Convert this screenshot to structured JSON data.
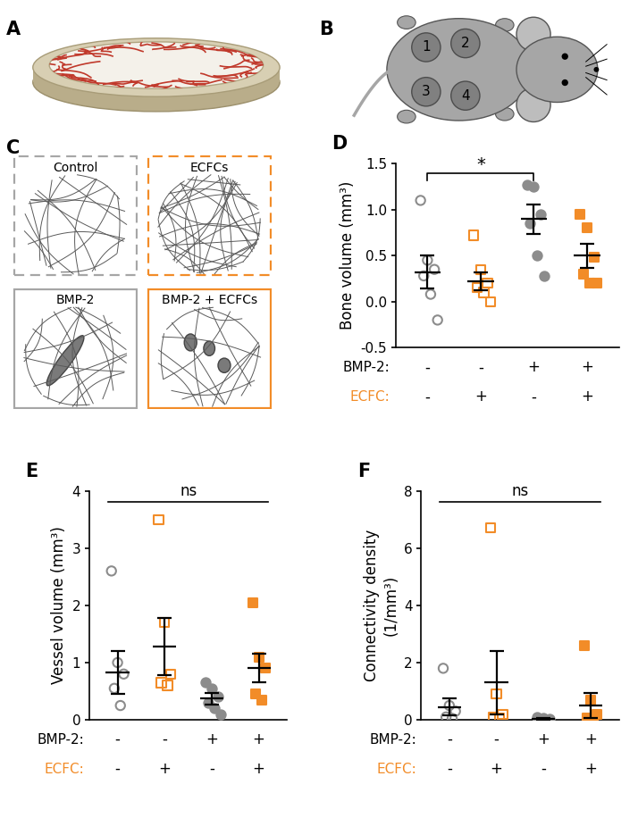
{
  "diagram": {
    "A": {
      "label": "A"
    },
    "B": {
      "label": "B",
      "sites": [
        "1",
        "2",
        "3",
        "4"
      ]
    },
    "C": {
      "label": "C",
      "boxes": [
        {
          "title": "Control",
          "color": "#a6a6a6",
          "line_style": "dashed"
        },
        {
          "title": "ECFCs",
          "color": "#f28c28",
          "line_style": "dashed"
        },
        {
          "title": "BMP-2",
          "color": "#a6a6a6",
          "line_style": "solid"
        },
        {
          "title": "BMP-2 + ECFCs",
          "color": "#f28c28",
          "line_style": "solid"
        }
      ]
    }
  },
  "chart_data": [
    {
      "type": "scatter",
      "title": "D",
      "y_label": "Bone volume (mm³)",
      "categories": [
        null,
        null,
        null,
        null
      ],
      "ylim": [
        -0.5,
        1.5
      ],
      "yticks": [
        {
          "value": -0.5,
          "label": "-0.5"
        },
        {
          "value": 0,
          "label": "0.0"
        },
        {
          "value": 0.5,
          "label": "0.5"
        },
        {
          "value": 1,
          "label": "1.0"
        },
        {
          "value": 1.5,
          "label": "1.5"
        }
      ],
      "groups": [
        {
          "color": "#8c8c8c",
          "marker": "open-circle",
          "values": [
            1.1,
            0.45,
            0.35,
            0.28,
            0.08,
            -0.2
          ],
          "mean": 0.32,
          "sem": 0.18
        },
        {
          "color": "#f28c28",
          "marker": "open-square",
          "values": [
            0.72,
            0.35,
            0.2,
            0.15,
            0.1,
            0.0
          ],
          "mean": 0.22,
          "sem": 0.1
        },
        {
          "color": "#8c8c8c",
          "marker": "circle",
          "values": [
            1.27,
            1.25,
            0.95,
            0.85,
            0.5,
            0.28
          ],
          "mean": 0.9,
          "sem": 0.16
        },
        {
          "color": "#f28c28",
          "marker": "square",
          "values": [
            0.95,
            0.8,
            0.48,
            0.3,
            0.2,
            0.2
          ],
          "mean": 0.5,
          "sem": 0.13
        }
      ],
      "conditions": [
        {
          "label": "BMP-2:",
          "color": "#000000",
          "values": [
            "-",
            "-",
            "+",
            "+"
          ]
        },
        {
          "label": "ECFC:",
          "color": "#f28c28",
          "values": [
            "-",
            "+",
            "-",
            "+"
          ]
        }
      ],
      "annotations": [
        {
          "text": "*",
          "from": 0,
          "to": 2,
          "line_style": "bracket"
        }
      ]
    },
    {
      "type": "scatter",
      "title": "E",
      "y_label": "Vessel volume (mm³)",
      "categories": [
        null,
        null,
        null,
        null
      ],
      "ylim": [
        0,
        4
      ],
      "yticks": [
        0,
        1,
        2,
        3,
        4
      ],
      "groups": [
        {
          "color": "#8c8c8c",
          "marker": "open-circle",
          "values": [
            2.6,
            1.0,
            0.8,
            0.55,
            0.25
          ],
          "mean": 0.83,
          "sem": 0.37
        },
        {
          "color": "#f28c28",
          "marker": "open-square",
          "values": [
            3.5,
            1.7,
            0.8,
            0.65,
            0.6
          ],
          "mean": 1.28,
          "sem": 0.5
        },
        {
          "color": "#8c8c8c",
          "marker": "circle",
          "values": [
            0.65,
            0.55,
            0.4,
            0.3,
            0.2,
            0.1
          ],
          "mean": 0.37,
          "sem": 0.1
        },
        {
          "color": "#f28c28",
          "marker": "square",
          "values": [
            2.05,
            1.1,
            0.9,
            0.45,
            0.35
          ],
          "mean": 0.9,
          "sem": 0.25
        }
      ],
      "conditions": [
        {
          "label": "BMP-2:",
          "color": "#000000",
          "values": [
            "-",
            "-",
            "+",
            "+"
          ]
        },
        {
          "label": "ECFC:",
          "color": "#f28c28",
          "values": [
            "-",
            "+",
            "-",
            "+"
          ]
        }
      ],
      "annotations": [
        {
          "text": "ns",
          "from": 0,
          "to": 3,
          "line_style": "solid"
        }
      ]
    },
    {
      "type": "scatter",
      "title": "F",
      "y_label": "Connectivity density\n(1/mm³)",
      "categories": [
        null,
        null,
        null,
        null
      ],
      "ylim": [
        0,
        8
      ],
      "yticks": [
        0,
        2,
        4,
        6,
        8
      ],
      "groups": [
        {
          "color": "#8c8c8c",
          "marker": "open-circle",
          "values": [
            1.8,
            0.5,
            0.3,
            0.1,
            0.05
          ],
          "mean": 0.45,
          "sem": 0.3
        },
        {
          "color": "#f28c28",
          "marker": "open-square",
          "values": [
            6.7,
            0.9,
            0.2,
            0.1,
            0.05
          ],
          "mean": 1.3,
          "sem": 1.1
        },
        {
          "color": "#8c8c8c",
          "marker": "circle",
          "values": [
            0.1,
            0.05,
            0.02,
            0.0,
            0.0
          ],
          "mean": 0.03,
          "sem": 0.02
        },
        {
          "color": "#f28c28",
          "marker": "square",
          "values": [
            2.6,
            0.7,
            0.2,
            0.05,
            0.0
          ],
          "mean": 0.5,
          "sem": 0.45
        }
      ],
      "conditions": [
        {
          "label": "BMP-2:",
          "color": "#000000",
          "values": [
            "-",
            "-",
            "+",
            "+"
          ]
        },
        {
          "label": "ECFC:",
          "color": "#f28c28",
          "values": [
            "-",
            "+",
            "-",
            "+"
          ]
        }
      ],
      "annotations": [
        {
          "text": "ns",
          "from": 0,
          "to": 3,
          "line_style": "solid"
        }
      ]
    }
  ]
}
